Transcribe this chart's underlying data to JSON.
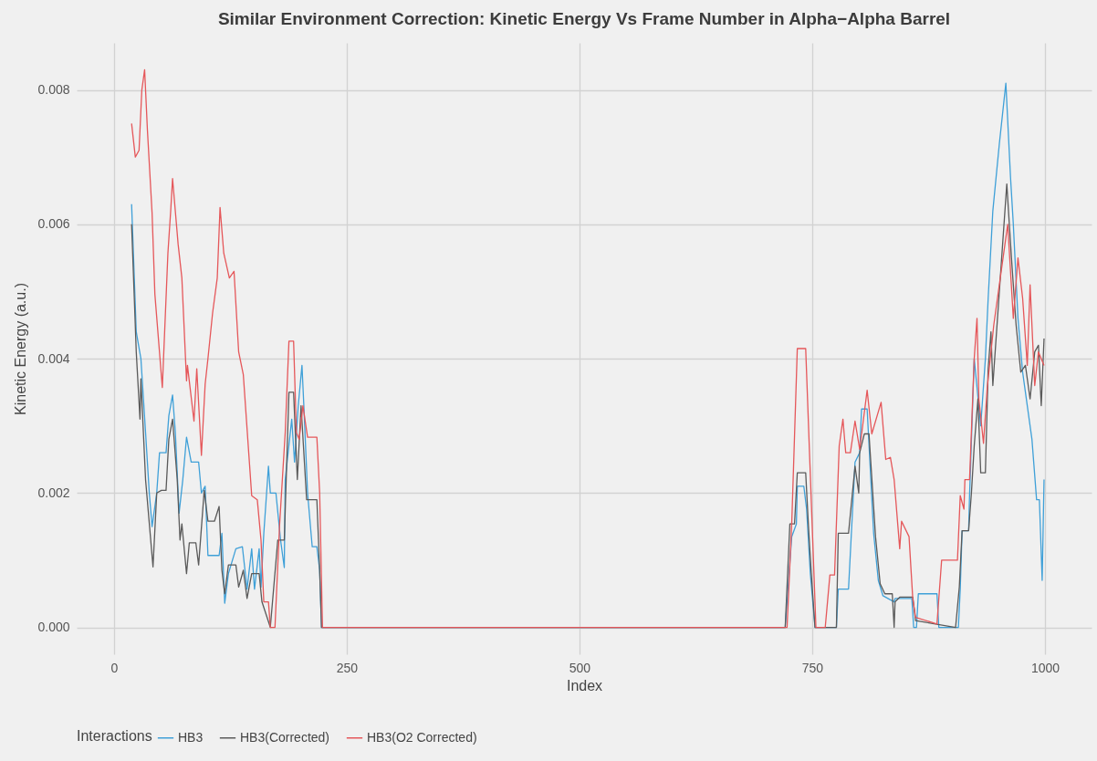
{
  "chart_data": {
    "type": "line",
    "title": "Similar Environment Correction: Kinetic Energy Vs Frame Number in Alpha−Alpha Barrel",
    "xlabel": "Index",
    "ylabel": "Kinetic Energy (a.u.)",
    "legend_title": "Interactions",
    "legend": "bottom",
    "grid": true,
    "xlim": [
      -40,
      1050
    ],
    "xticks": [
      0,
      250,
      500,
      750,
      1000
    ],
    "ylim": [
      -0.0004,
      0.0087
    ],
    "yticks": [
      {
        "value": 0,
        "label": "0.000"
      },
      {
        "value": 0.002,
        "label": "0.002"
      },
      {
        "value": 0.004,
        "label": "0.004"
      },
      {
        "value": 0.006,
        "label": "0.006"
      },
      {
        "value": 0.008,
        "label": "0.008"
      }
    ],
    "series": [
      {
        "name": "HB3",
        "color": "#3fa0d8",
        "x": [
          19,
          24,
          29,
          34,
          38,
          41,
          46,
          49,
          56,
          59,
          63,
          66,
          70,
          74,
          78,
          83,
          91,
          94,
          98,
          101,
          113,
          116,
          119,
          123,
          131,
          138,
          143,
          148,
          151,
          156,
          158,
          161,
          166,
          168,
          174,
          179,
          183,
          184,
          191,
          194,
          198,
          202,
          204,
          208,
          213,
          218,
          221,
          223,
          721,
          728,
          733,
          734,
          741,
          744,
          748,
          753,
          776,
          778,
          789,
          796,
          801,
          803,
          809,
          816,
          821,
          826,
          838,
          839,
          857,
          859,
          862,
          864,
          884,
          886,
          907,
          909,
          911,
          918,
          919,
          924,
          931,
          936,
          939,
          944,
          951,
          958,
          963,
          966,
          971,
          976,
          981,
          986,
          991,
          994,
          997,
          999
        ],
        "values": [
          0.0063,
          0.0044,
          0.004,
          0.0029,
          0.002,
          0.0015,
          0.002,
          0.0026,
          0.0026,
          0.00315,
          0.00346,
          0.0029,
          0.0017,
          0.0022,
          0.00283,
          0.00246,
          0.00246,
          0.002,
          0.0021,
          0.00107,
          0.00107,
          0.0014,
          0.00036,
          0.0008,
          0.00117,
          0.0012,
          0.00057,
          0.00117,
          0.00057,
          0.00117,
          0.0006,
          0.0014,
          0.0024,
          0.002,
          0.002,
          0.0013,
          0.00089,
          0.0022,
          0.0031,
          0.00246,
          0.0033,
          0.0039,
          0.0033,
          0.002,
          0.0012,
          0.0012,
          0.00085,
          0,
          0,
          0.00135,
          0.00154,
          0.0021,
          0.0021,
          0.00176,
          0.0008,
          0,
          0,
          0.00057,
          0.00057,
          0.00246,
          0.0026,
          0.00325,
          0.00325,
          0.0014,
          0.0007,
          0.00047,
          0.00038,
          0.00043,
          0.00043,
          0,
          0,
          0.0005,
          0.0005,
          0,
          0,
          0.00057,
          0.00144,
          0.00144,
          0.00196,
          0.004,
          0.003,
          0.004,
          0.0049,
          0.0062,
          0.0072,
          0.0081,
          0.0067,
          0.006,
          0.0046,
          0.0038,
          0.0033,
          0.0028,
          0.0019,
          0.0019,
          0.0007,
          0.0022
        ]
      },
      {
        "name": "HB3(Corrected)",
        "color": "#5a5a5a",
        "x": [
          19,
          24,
          28,
          29,
          34,
          42,
          46,
          51,
          56,
          59,
          63,
          68,
          71,
          73,
          78,
          81,
          88,
          91,
          97,
          101,
          108,
          113,
          116,
          119,
          123,
          131,
          134,
          139,
          143,
          148,
          156,
          159,
          168,
          176,
          183,
          188,
          193,
          197,
          201,
          207,
          218,
          221,
          223,
          721,
          726,
          731,
          734,
          743,
          746,
          749,
          753,
          776,
          778,
          789,
          796,
          800,
          801,
          806,
          811,
          818,
          823,
          828,
          836,
          838,
          839,
          844,
          858,
          861,
          904,
          908,
          911,
          918,
          921,
          924,
          928,
          931,
          936,
          939,
          942,
          944,
          951,
          959,
          964,
          969,
          974,
          979,
          984,
          989,
          993,
          996,
          999
        ],
        "values": [
          0.006,
          0.0041,
          0.0031,
          0.0037,
          0.0022,
          0.0009,
          0.002,
          0.00204,
          0.00204,
          0.0028,
          0.0031,
          0.0022,
          0.0013,
          0.00154,
          0.0008,
          0.00126,
          0.00126,
          0.00093,
          0.00204,
          0.00158,
          0.00158,
          0.0018,
          0.00085,
          0.0005,
          0.00093,
          0.00093,
          0.0006,
          0.00085,
          0.00043,
          0.0008,
          0.0008,
          0.00038,
          0,
          0.0013,
          0.0013,
          0.0035,
          0.0035,
          0.0022,
          0.0033,
          0.0019,
          0.0019,
          0.00085,
          0,
          0,
          0.00154,
          0.00154,
          0.0023,
          0.0023,
          0.0015,
          0.0008,
          0,
          0,
          0.0014,
          0.0014,
          0.0024,
          0.002,
          0.0026,
          0.00288,
          0.00288,
          0.00135,
          0.00065,
          0.0005,
          0.0005,
          0,
          0.00038,
          0.00045,
          0.00045,
          0.0001,
          0,
          0.0006,
          0.00144,
          0.00144,
          0.002,
          0.0027,
          0.0034,
          0.0023,
          0.0023,
          0.00385,
          0.0044,
          0.0036,
          0.005,
          0.0066,
          0.0055,
          0.0045,
          0.0038,
          0.0039,
          0.0034,
          0.0041,
          0.0042,
          0.0033,
          0.0043
        ]
      },
      {
        "name": "HB3(O2 Corrected)",
        "color": "#e5575a",
        "x": [
          19,
          23,
          27,
          30,
          33,
          36,
          41,
          44,
          52,
          58,
          61,
          63,
          69,
          73,
          78,
          79,
          86,
          89,
          94,
          98,
          101,
          106,
          111,
          114,
          118,
          124,
          129,
          134,
          139,
          148,
          154,
          158,
          161,
          166,
          168,
          173,
          178,
          184,
          188,
          193,
          196,
          199,
          203,
          208,
          218,
          221,
          224,
          723,
          728,
          734,
          743,
          754,
          764,
          769,
          774,
          779,
          783,
          786,
          791,
          796,
          801,
          809,
          814,
          824,
          829,
          834,
          838,
          844,
          846,
          854,
          858,
          861,
          884,
          889,
          906,
          909,
          913,
          914,
          919,
          924,
          927,
          929,
          934,
          938,
          945,
          952,
          960,
          966,
          971,
          976,
          981,
          984,
          989,
          993,
          999
        ],
        "values": [
          0.0075,
          0.007,
          0.0071,
          0.008,
          0.0083,
          0.0074,
          0.00617,
          0.00496,
          0.00357,
          0.00557,
          0.0062,
          0.00668,
          0.0057,
          0.0052,
          0.00367,
          0.0039,
          0.00307,
          0.00385,
          0.00256,
          0.00362,
          0.004,
          0.00468,
          0.0052,
          0.00625,
          0.00557,
          0.0052,
          0.0053,
          0.0041,
          0.00376,
          0.00196,
          0.0019,
          0.0013,
          0.00038,
          0.00038,
          0,
          0,
          0.00154,
          0.0029,
          0.00426,
          0.00426,
          0.0029,
          0.0028,
          0.0033,
          0.00283,
          0.00283,
          0.002,
          0,
          0,
          0.00154,
          0.00415,
          0.00415,
          0,
          0,
          0.00078,
          0.00078,
          0.0027,
          0.0031,
          0.0026,
          0.0026,
          0.00307,
          0.00265,
          0.00353,
          0.00288,
          0.00335,
          0.0025,
          0.00253,
          0.0022,
          0.00117,
          0.00158,
          0.00135,
          0.00043,
          0.00015,
          5e-05,
          0.001,
          0.001,
          0.00196,
          0.00176,
          0.0022,
          0.0022,
          0.004,
          0.0046,
          0.0034,
          0.00274,
          0.00357,
          0.0045,
          0.0052,
          0.006,
          0.0046,
          0.0055,
          0.0049,
          0.0039,
          0.0051,
          0.0036,
          0.0041,
          0.0039
        ]
      }
    ]
  }
}
